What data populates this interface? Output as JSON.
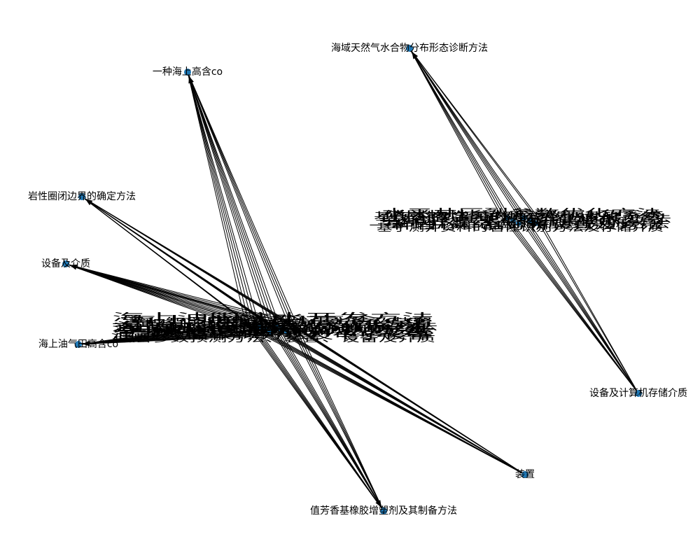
{
  "graph": {
    "node_color": "#1f77b4",
    "edge_color": "#000000",
    "label_color": "#000000",
    "outer_nodes": [
      {
        "id": "n1",
        "label": "一种海上高含co"
      },
      {
        "id": "n2",
        "label": "岩性圈闭边界的确定方法"
      },
      {
        "id": "n3",
        "label": "设备及介质"
      },
      {
        "id": "n4",
        "label": "海上油气田高含co"
      },
      {
        "id": "n5",
        "label": "值芳香基橡胶增塑剂及其制备方法"
      },
      {
        "id": "n6",
        "label": "装置"
      },
      {
        "id": "n7",
        "label": "海域天然气水合物分布形态诊断方法"
      },
      {
        "id": "n8",
        "label": "设备及计算机存储介质"
      }
    ],
    "cluster_a_labels": [
      "海上油气田高含co",
      "一种海上油气田开发方案优化方法",
      "海上油气田储层流体分析方法",
      "基于机器学习的储层预测方法",
      "一种低渗储层评价装置",
      "油藏数值模拟方法及电子设备",
      "一种智能钻井参数优化方法及装置",
      "海上平台设备监测系统",
      "储层参数预测方法、装置、设备及介质",
      "一种地层压力确定方法",
      "油藏流体相态分析方法",
      "海上油田注水开发方法"
    ],
    "cluster_b_labels": [
      "水平井压裂参数优化方法",
      "基于深度学习的地震数据处理方法",
      "铁路隧道地质超前预报方法",
      "一种天然气水合物开采模拟装置",
      "基于井震结合的断层识别方法",
      "一种岩心样品分析装置及方法",
      "储层物性参数反演方法及系统",
      "基于测井资料的岩性识别方法及存储介质"
    ]
  }
}
